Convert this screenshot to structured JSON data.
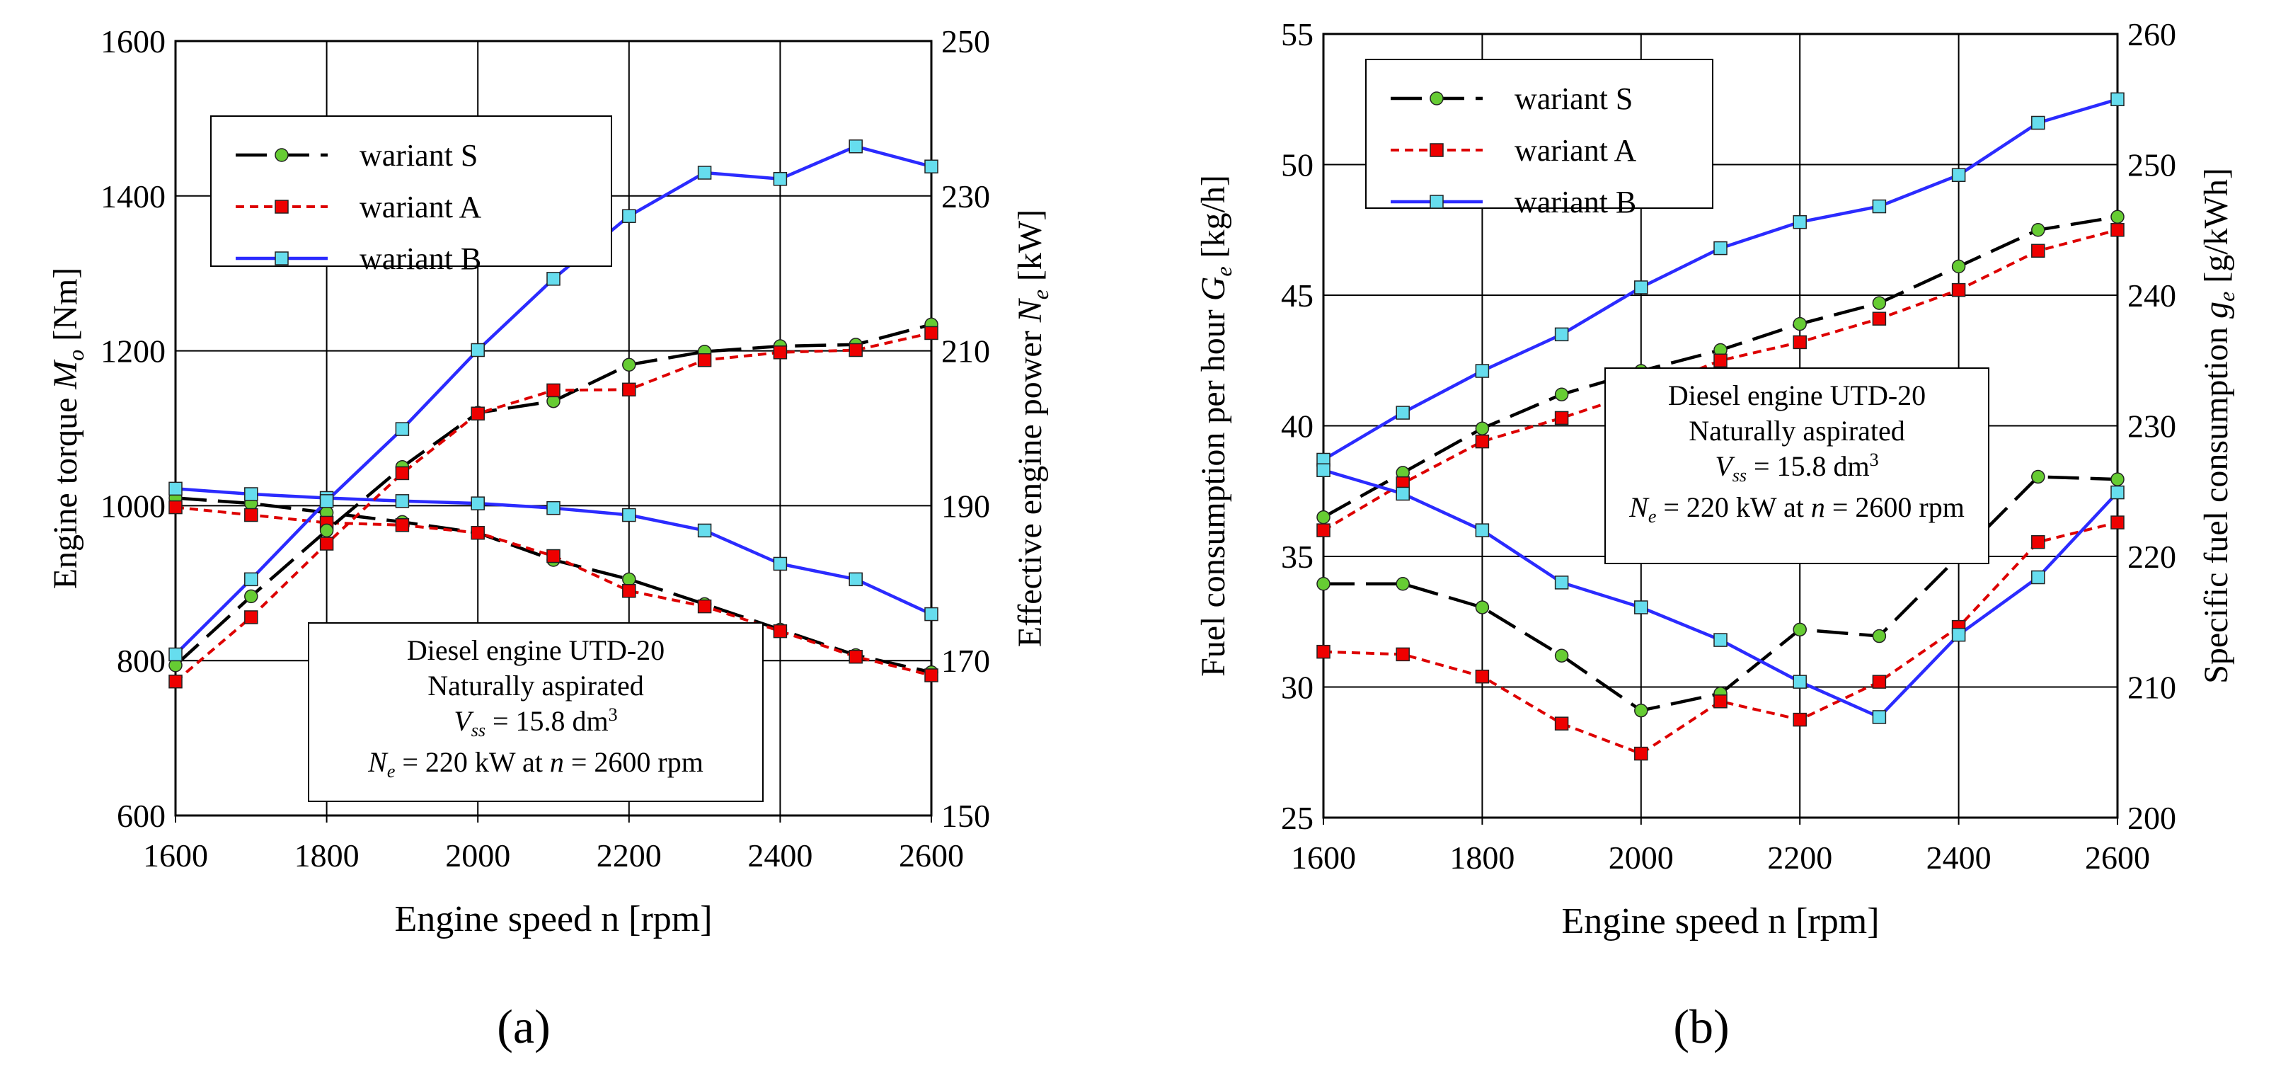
{
  "figure": {
    "panel_labels": [
      "(a)",
      "(b)"
    ]
  },
  "legend_entries": [
    "wariant S",
    "wariant A",
    "wariant B"
  ],
  "annotation": {
    "line1": "Diesel engine UTD-20",
    "line2": "Naturally aspirated",
    "line3_pre": "V",
    "line3_sub": "ss",
    "line3_post": " = 15.8 dm",
    "line3_sup": "3",
    "line4_pre": "N",
    "line4_sub": "e",
    "line4_mid": " = 220 kW at ",
    "line4_n": "n",
    "line4_post": " = 2600 rpm"
  },
  "colors": {
    "wariant_S": "#000000",
    "wariant_A": "#dd0000",
    "wariant_B": "#2b2bff",
    "marker_S": "#66cc33",
    "marker_A": "#ee0000",
    "marker_B": "#66ddee"
  },
  "chart_data": [
    {
      "type": "line",
      "panel": "(a)",
      "xlabel": "Engine speed n  [rpm]",
      "ylabel_left": "Engine torque Mo [Nm]",
      "ylabel_right": "Effective engine power Ne [kW]",
      "x": [
        1600,
        1700,
        1800,
        1900,
        2000,
        2100,
        2200,
        2300,
        2400,
        2500,
        2600
      ],
      "xlim": [
        1600,
        2600
      ],
      "xticks": [
        "1600",
        "1800",
        "2000",
        "2200",
        "2400",
        "2600"
      ],
      "ylim_left": [
        600,
        1600
      ],
      "yticks_left": [
        "600",
        "800",
        "1000",
        "1200",
        "1400",
        "1600"
      ],
      "ylim_right": [
        150,
        250
      ],
      "yticks_right": [
        "150",
        "170",
        "190",
        "210",
        "230",
        "250"
      ],
      "grid": true,
      "legend_position": "top-left",
      "series": [
        {
          "name": "wariant S",
          "quantity": "torque",
          "axis": "left",
          "values": [
            1010,
            1003,
            991,
            979,
            965,
            930,
            905,
            873,
            840,
            807,
            785
          ]
        },
        {
          "name": "wariant A",
          "quantity": "torque",
          "axis": "left",
          "values": [
            998,
            988,
            978,
            975,
            965,
            935,
            890,
            870,
            838,
            805,
            781
          ]
        },
        {
          "name": "wariant B",
          "quantity": "torque",
          "axis": "left",
          "values": [
            1022,
            1015,
            1010,
            1006,
            1003,
            997,
            988,
            968,
            925,
            905,
            860
          ]
        },
        {
          "name": "wariant S",
          "quantity": "power",
          "axis": "right",
          "values": [
            169.4,
            178.3,
            186.8,
            195,
            202,
            203.5,
            208.2,
            209.9,
            210.6,
            210.8,
            213.4
          ]
        },
        {
          "name": "wariant A",
          "quantity": "power",
          "axis": "right",
          "values": [
            167.3,
            175.6,
            185.1,
            194.2,
            201.9,
            204.9,
            205,
            208.8,
            209.8,
            210.1,
            212.3
          ]
        },
        {
          "name": "wariant B",
          "quantity": "power",
          "axis": "right",
          "values": [
            170.8,
            180.5,
            190.6,
            199.9,
            210.1,
            219.3,
            227.4,
            233,
            232.2,
            236.4,
            233.8
          ]
        }
      ]
    },
    {
      "type": "line",
      "panel": "(b)",
      "xlabel": "Engine speed n [rpm]",
      "ylabel_left": "Fuel consumption per hour Ge [kg/h]",
      "ylabel_right": "Specific fuel consumption ge [g/kWh]",
      "x": [
        1600,
        1700,
        1800,
        1900,
        2000,
        2100,
        2200,
        2300,
        2400,
        2500,
        2600
      ],
      "xlim": [
        1600,
        2600
      ],
      "xticks": [
        "1600",
        "1800",
        "2000",
        "2200",
        "2400",
        "2600"
      ],
      "ylim_left": [
        25,
        55
      ],
      "yticks_left": [
        "25",
        "30",
        "35",
        "40",
        "45",
        "50",
        "55"
      ],
      "ylim_right": [
        200,
        260
      ],
      "yticks_right": [
        "200",
        "210",
        "220",
        "230",
        "240",
        "250",
        "260"
      ],
      "grid": true,
      "legend_position": "top-left",
      "series": [
        {
          "name": "wariant S",
          "quantity": "fuel per hour",
          "axis": "left",
          "values": [
            36.5,
            38.2,
            39.9,
            41.2,
            42.1,
            42.9,
            43.9,
            44.7,
            46.1,
            47.5,
            48
          ]
        },
        {
          "name": "wariant A",
          "quantity": "fuel per hour",
          "axis": "left",
          "values": [
            36,
            37.8,
            39.4,
            40.3,
            41.3,
            42.5,
            43.2,
            44.1,
            45.2,
            46.7,
            47.5
          ]
        },
        {
          "name": "wariant B",
          "quantity": "fuel per hour",
          "axis": "left",
          "values": [
            38.7,
            40.5,
            42.1,
            43.5,
            45.3,
            46.8,
            47.8,
            48.4,
            49.6,
            51.6,
            52.5
          ]
        },
        {
          "name": "wariant S",
          "quantity": "specific fuel",
          "axis": "right",
          "values": [
            217.9,
            217.9,
            216.1,
            212.4,
            208.2,
            209.5,
            214.4,
            213.9,
            220,
            226.1,
            225.9
          ]
        },
        {
          "name": "wariant A",
          "quantity": "specific fuel",
          "axis": "right",
          "values": [
            212.7,
            212.5,
            210.8,
            207.2,
            204.9,
            208.9,
            207.5,
            210.4,
            214.6,
            221.1,
            222.6
          ]
        },
        {
          "name": "wariant B",
          "quantity": "specific fuel",
          "axis": "right",
          "values": [
            226.6,
            224.8,
            222,
            218,
            216.1,
            213.6,
            210.4,
            207.7,
            214,
            218.4,
            224.9
          ]
        }
      ]
    }
  ]
}
